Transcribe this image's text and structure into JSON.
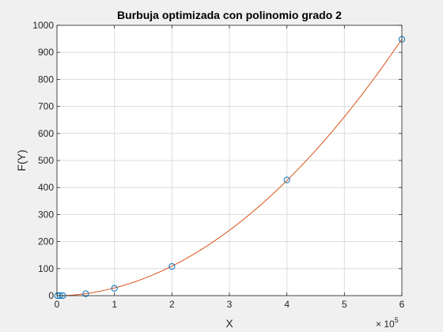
{
  "chart_data": {
    "type": "scatter",
    "title": "Burbuja optimizada con polinomio grado 2",
    "xlabel": "X",
    "ylabel": "F(Y)",
    "x_exponent_base": "× 10",
    "x_exponent_power": "5",
    "xlim": [
      0,
      600000
    ],
    "ylim": [
      0,
      1000
    ],
    "xticks": [
      0,
      100000,
      200000,
      300000,
      400000,
      500000,
      600000
    ],
    "xtick_labels": [
      "0",
      "1",
      "2",
      "3",
      "4",
      "5",
      "6"
    ],
    "yticks": [
      0,
      100,
      200,
      300,
      400,
      500,
      600,
      700,
      800,
      900,
      1000
    ],
    "ytick_labels": [
      "0",
      "100",
      "200",
      "300",
      "400",
      "500",
      "600",
      "700",
      "800",
      "900",
      "1000"
    ],
    "grid": true,
    "series": [
      {
        "kind": "markers",
        "marker": "circle",
        "color": "#0072bd",
        "x": [
          1000,
          5000,
          10000,
          50000,
          100000,
          200000,
          400000,
          600000
        ],
        "y": [
          0,
          0,
          0.2,
          7,
          27,
          108,
          428,
          948
        ]
      },
      {
        "kind": "fit-curve",
        "color": "#d95319",
        "polynomial_degree": 2,
        "x_range": [
          0,
          600000
        ]
      }
    ]
  }
}
